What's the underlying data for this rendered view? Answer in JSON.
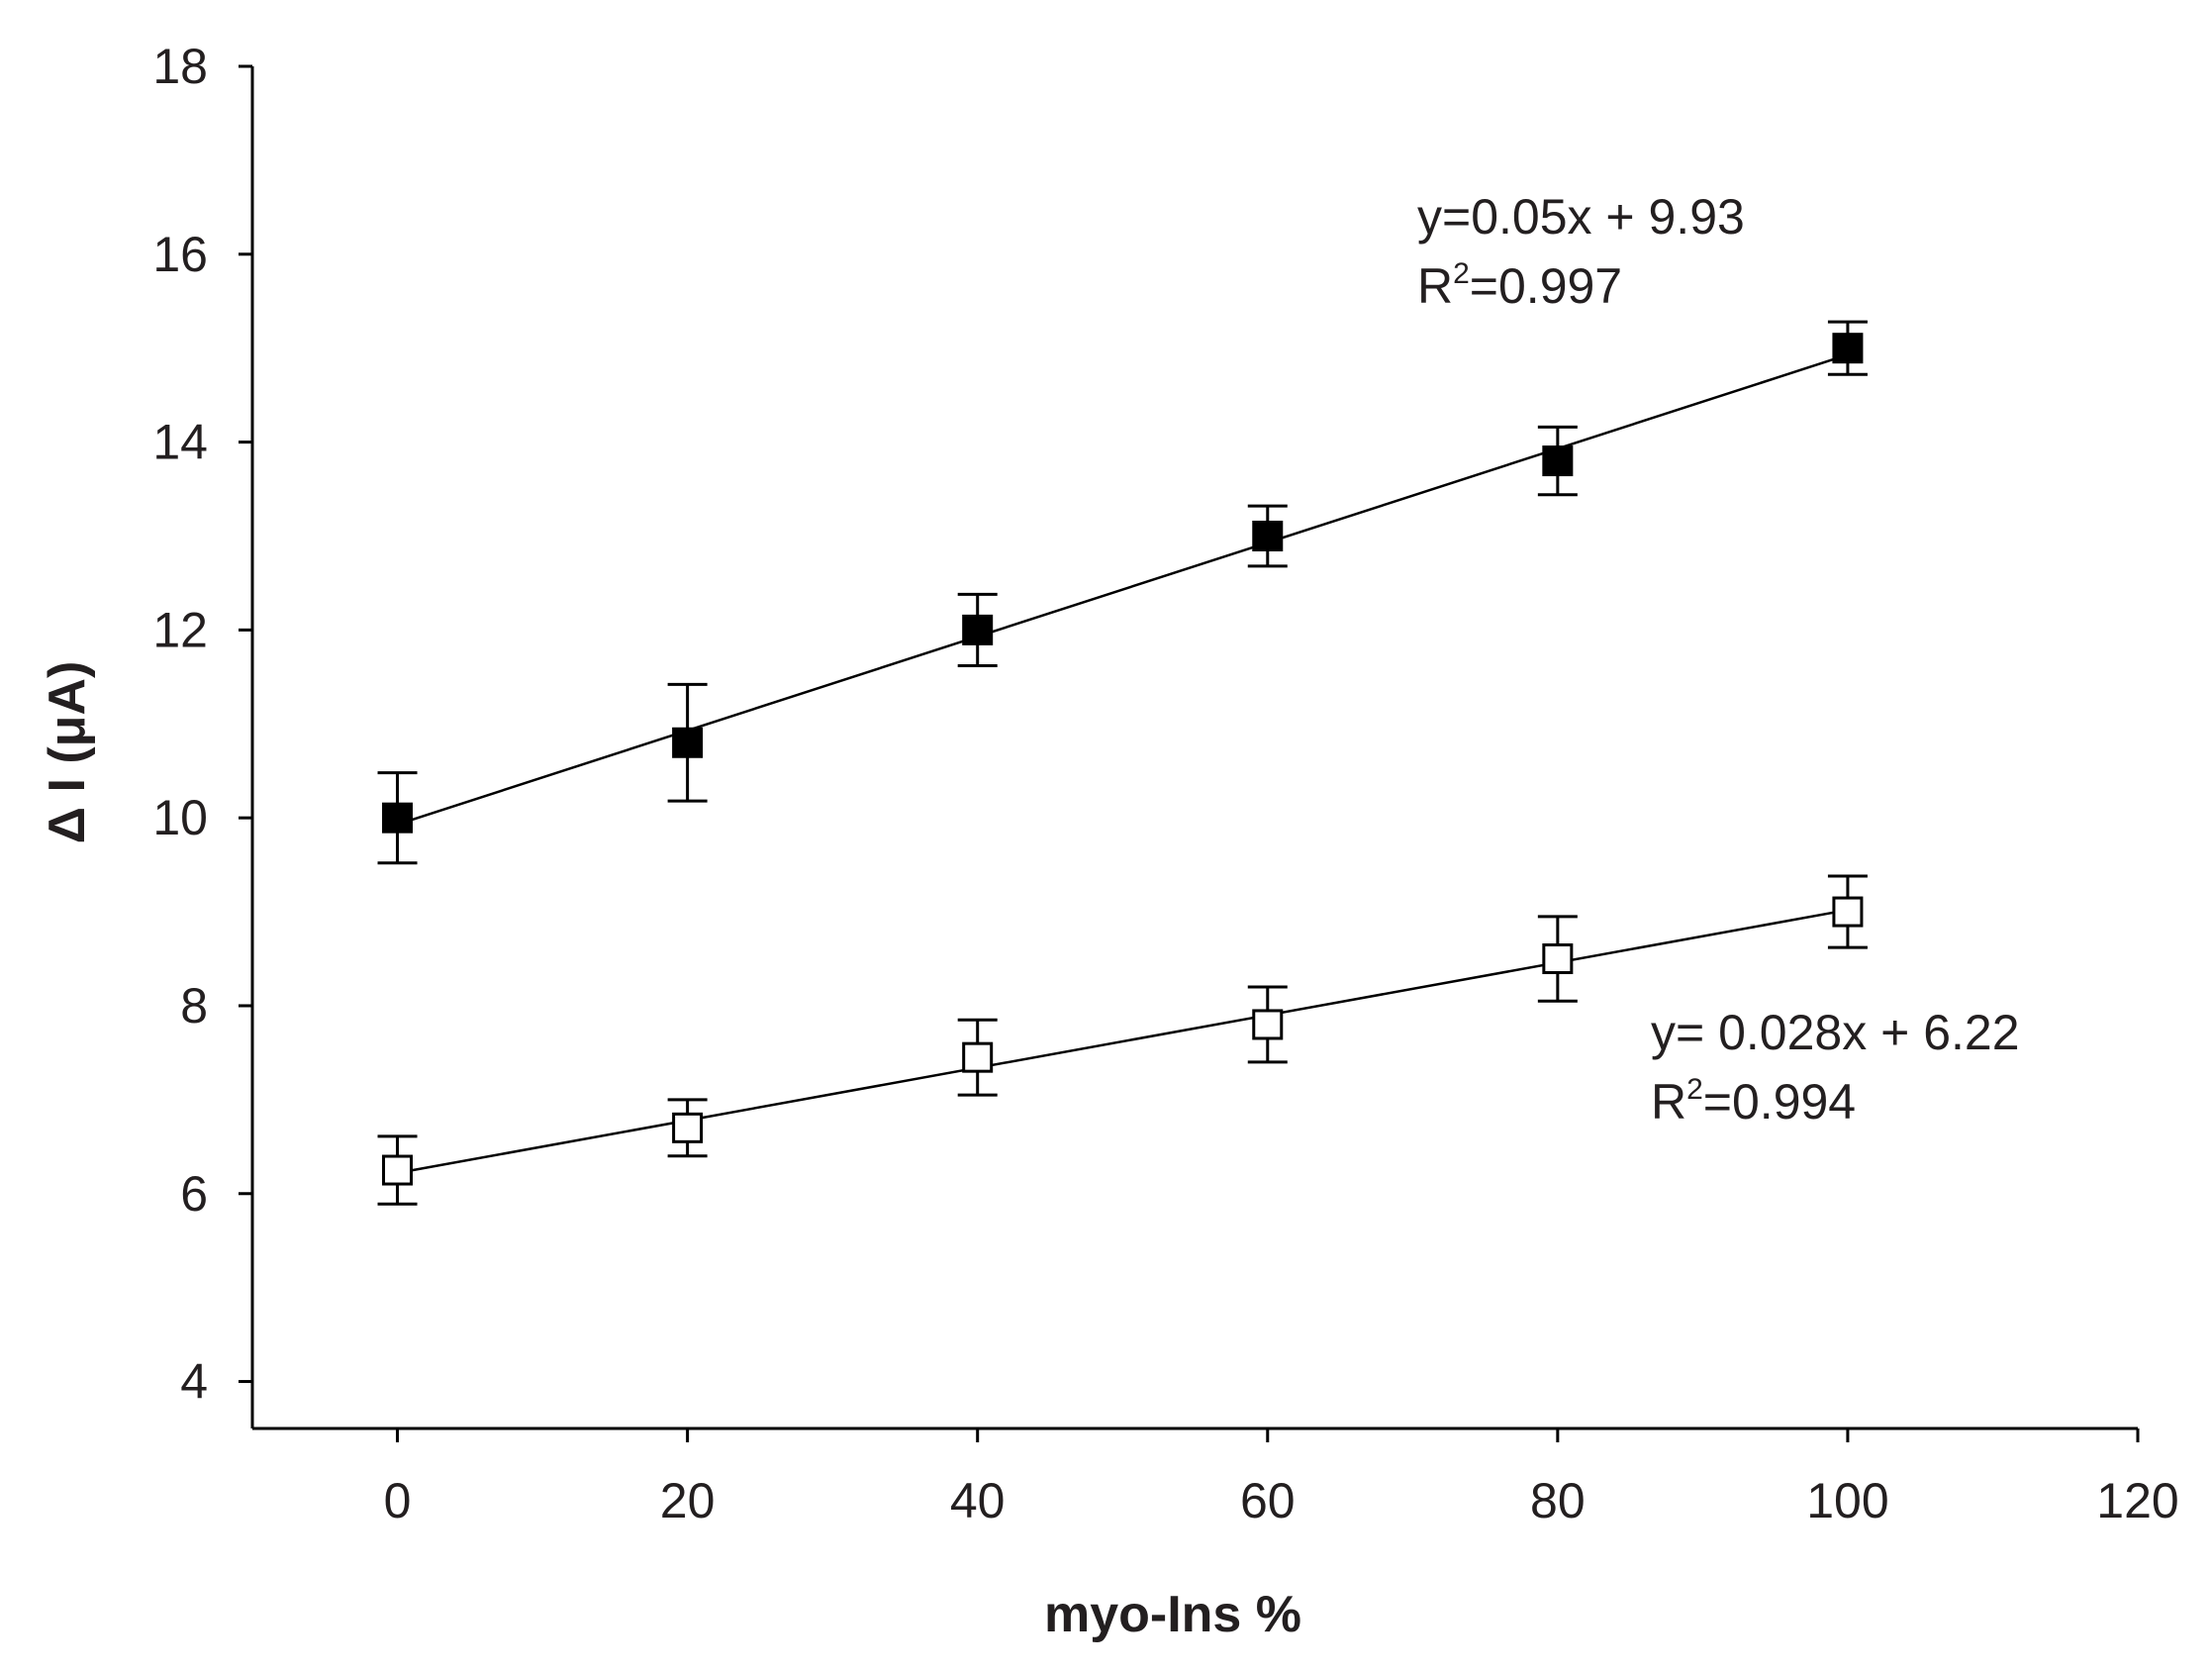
{
  "chart_data": {
    "type": "scatter",
    "title": "",
    "xlabel": "myo-Ins %",
    "ylabel": "Δ I (μA)",
    "xlim": [
      -10,
      120
    ],
    "ylim": [
      3.5,
      18
    ],
    "xticks": [
      0,
      20,
      40,
      60,
      80,
      100,
      120
    ],
    "yticks": [
      4,
      6,
      8,
      10,
      12,
      14,
      16,
      18
    ],
    "xtick_labels": [
      "0",
      "20",
      "40",
      "60",
      "80",
      "100",
      "120"
    ],
    "ytick_labels": [
      "4",
      "6",
      "8",
      "10",
      "12",
      "14",
      "16",
      "18"
    ],
    "grid": false,
    "series": [
      {
        "name": "filled squares",
        "marker": "filled-square",
        "x": [
          0,
          20,
          40,
          60,
          80,
          100
        ],
        "y": [
          10.0,
          10.8,
          12.0,
          13.0,
          13.8,
          15.0
        ],
        "error": [
          0.48,
          0.62,
          0.38,
          0.32,
          0.36,
          0.28
        ],
        "fit": {
          "slope": 0.05,
          "intercept": 9.93
        },
        "equation": "y=0.05x + 9.93",
        "r2_prefix": "R",
        "r2_sup": "2",
        "r2_value": "=0.997"
      },
      {
        "name": "open squares",
        "marker": "open-square",
        "x": [
          0,
          20,
          40,
          60,
          80,
          100
        ],
        "y": [
          6.25,
          6.7,
          7.45,
          7.8,
          8.5,
          9.0
        ],
        "error": [
          0.36,
          0.3,
          0.4,
          0.4,
          0.45,
          0.38
        ],
        "fit": {
          "slope": 0.028,
          "intercept": 6.22
        },
        "equation": "y= 0.028x + 6.22",
        "r2_prefix": "R",
        "r2_sup": "2",
        "r2_value": "=0.994"
      }
    ]
  },
  "colors": {
    "ink": "#000000",
    "text": "#231f20",
    "open_fill": "#ffffff"
  }
}
